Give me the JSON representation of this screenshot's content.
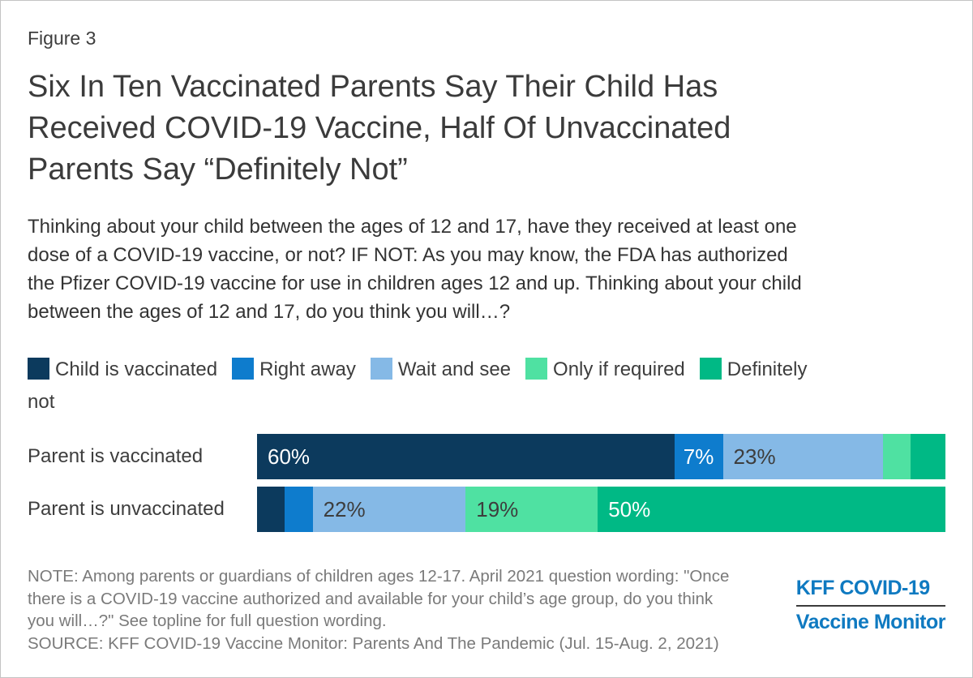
{
  "header": {
    "figure_label": "Figure 3",
    "title": "Six In Ten Vaccinated Parents Say Their Child Has\nReceived COVID-19 Vaccine, Half Of Unvaccinated\nParents Say “Definitely Not”",
    "subtitle": "Thinking about your child between the ages of 12 and 17, have they received at least one\ndose of a COVID-19 vaccine, or not? IF NOT: As you may know, the FDA has authorized\nthe Pfizer COVID-19 vaccine for use in children ages 12 and up. Thinking about your child\nbetween the ages of 12 and 17, do you think you will…?"
  },
  "legend": {
    "items": [
      {
        "label": "Child is vaccinated",
        "color": "#0c3a5d"
      },
      {
        "label": "Right away",
        "color": "#0e7ccd"
      },
      {
        "label": "Wait and see",
        "color": "#85b9e6"
      },
      {
        "label": "Only if required",
        "color": "#4fe1a2"
      },
      {
        "label": "Definitely\nnot",
        "color": "#00b985"
      }
    ]
  },
  "chart_data": {
    "type": "bar",
    "stacked": true,
    "orientation": "horizontal",
    "unit": "percent",
    "xlim": [
      0,
      100
    ],
    "grid": false,
    "legend_position": "top",
    "categories": [
      "Parent is vaccinated",
      "Parent is unvaccinated"
    ],
    "series_colors": {
      "Child is vaccinated": "#0c3a5d",
      "Right away": "#0e7ccd",
      "Wait and see": "#85b9e6",
      "Only if required": "#4fe1a2",
      "Definitely not": "#00b985"
    },
    "rows": [
      {
        "category": "Parent is vaccinated",
        "segments": [
          {
            "name": "Child is vaccinated",
            "value": 60,
            "label": "60%",
            "label_color": "#ffffff",
            "align": "left"
          },
          {
            "name": "Right away",
            "value": 7,
            "label": "7%",
            "label_color": "#ffffff",
            "align": "center"
          },
          {
            "name": "Wait and see",
            "value": 23,
            "label": "23%",
            "label_color": "#3d3d3d",
            "align": "left"
          },
          {
            "name": "Only if required",
            "value": 4,
            "label": "",
            "label_color": "#3d3d3d",
            "align": "left"
          },
          {
            "name": "Definitely not",
            "value": 5,
            "label": "",
            "label_color": "#ffffff",
            "align": "left"
          }
        ]
      },
      {
        "category": "Parent is unvaccinated",
        "segments": [
          {
            "name": "Child is vaccinated",
            "value": 4,
            "label": "",
            "label_color": "#ffffff",
            "align": "left"
          },
          {
            "name": "Right away",
            "value": 4,
            "label": "",
            "label_color": "#ffffff",
            "align": "left"
          },
          {
            "name": "Wait and see",
            "value": 22,
            "label": "22%",
            "label_color": "#3d3d3d",
            "align": "left"
          },
          {
            "name": "Only if required",
            "value": 19,
            "label": "19%",
            "label_color": "#3d3d3d",
            "align": "left"
          },
          {
            "name": "Definitely not",
            "value": 50,
            "label": "50%",
            "label_color": "#ffffff",
            "align": "left"
          }
        ]
      }
    ]
  },
  "footer": {
    "note": "NOTE: Among parents or guardians of children ages 12-17. April 2021 question wording: \"Once\nthere is a COVID-19 vaccine authorized and available for your child’s age group, do you think\nyou will…?\" See topline for full question wording.",
    "source": "SOURCE: KFF COVID-19 Vaccine Monitor: Parents And The Pandemic (Jul. 15-Aug. 2, 2021)",
    "logo": {
      "line1": "KFF COVID-19",
      "line2": "Vaccine Monitor",
      "color": "#0f7ac1"
    }
  }
}
